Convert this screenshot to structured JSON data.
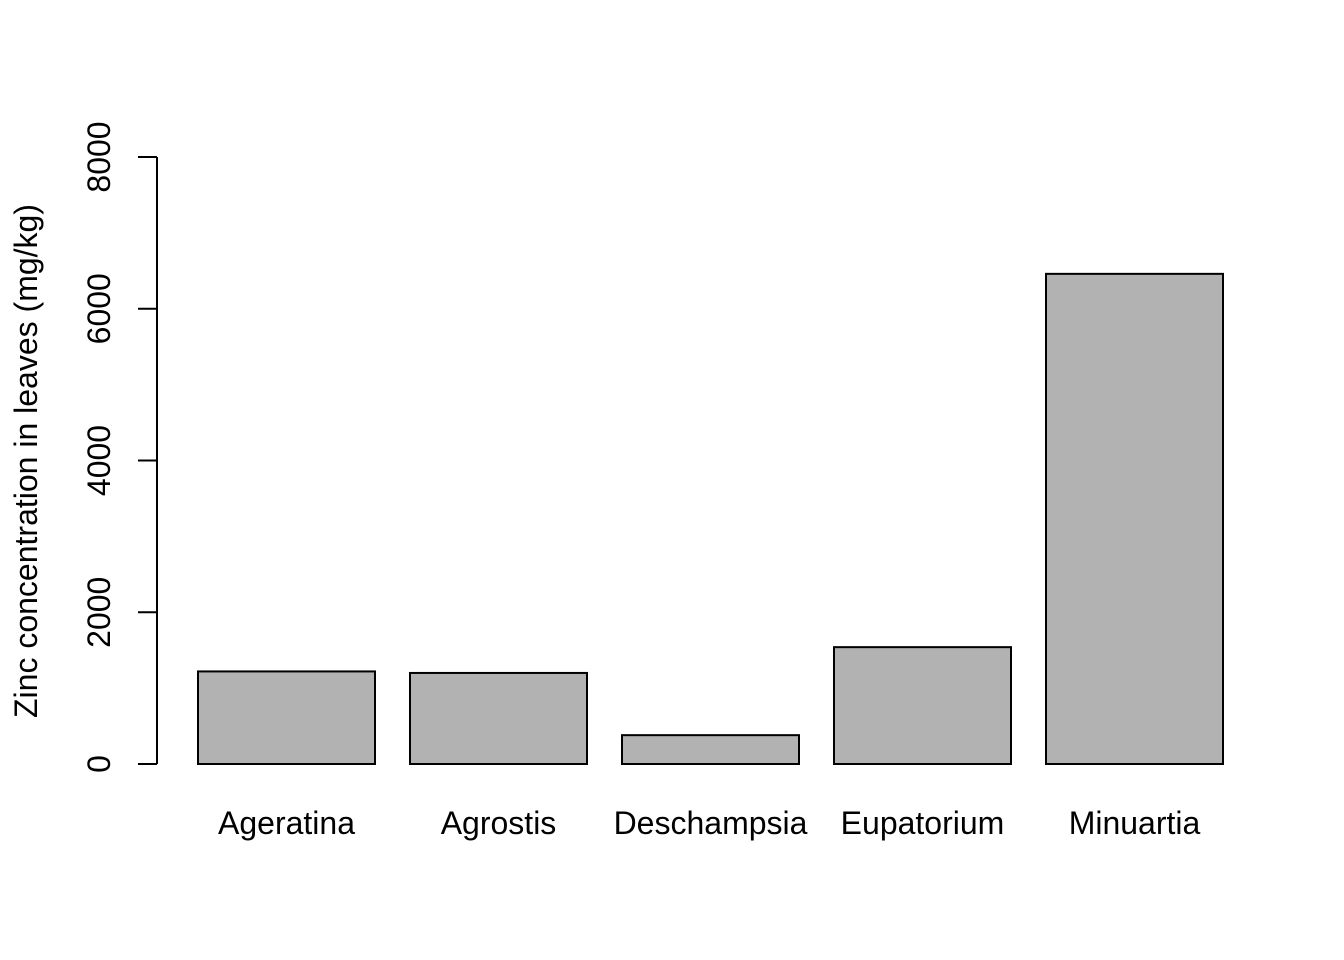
{
  "chart_data": {
    "type": "bar",
    "title": "",
    "xlabel": "",
    "ylabel": "Zinc concentration in leaves (mg/kg)",
    "categories": [
      "Ageratina",
      "Agrostis",
      "Deschampsia",
      "Eupatorium",
      "Minuartia"
    ],
    "values": [
      1220,
      1200,
      380,
      1540,
      6460
    ],
    "ylim": [
      0,
      8000
    ],
    "yticks": [
      "0",
      "2000",
      "4000",
      "6000",
      "8000"
    ],
    "grid": false,
    "legend": "none",
    "colors": {
      "bar_fill": "#b2b2b2",
      "bar_stroke": "#000000",
      "axis": "#000000",
      "background": "#ffffff"
    }
  }
}
